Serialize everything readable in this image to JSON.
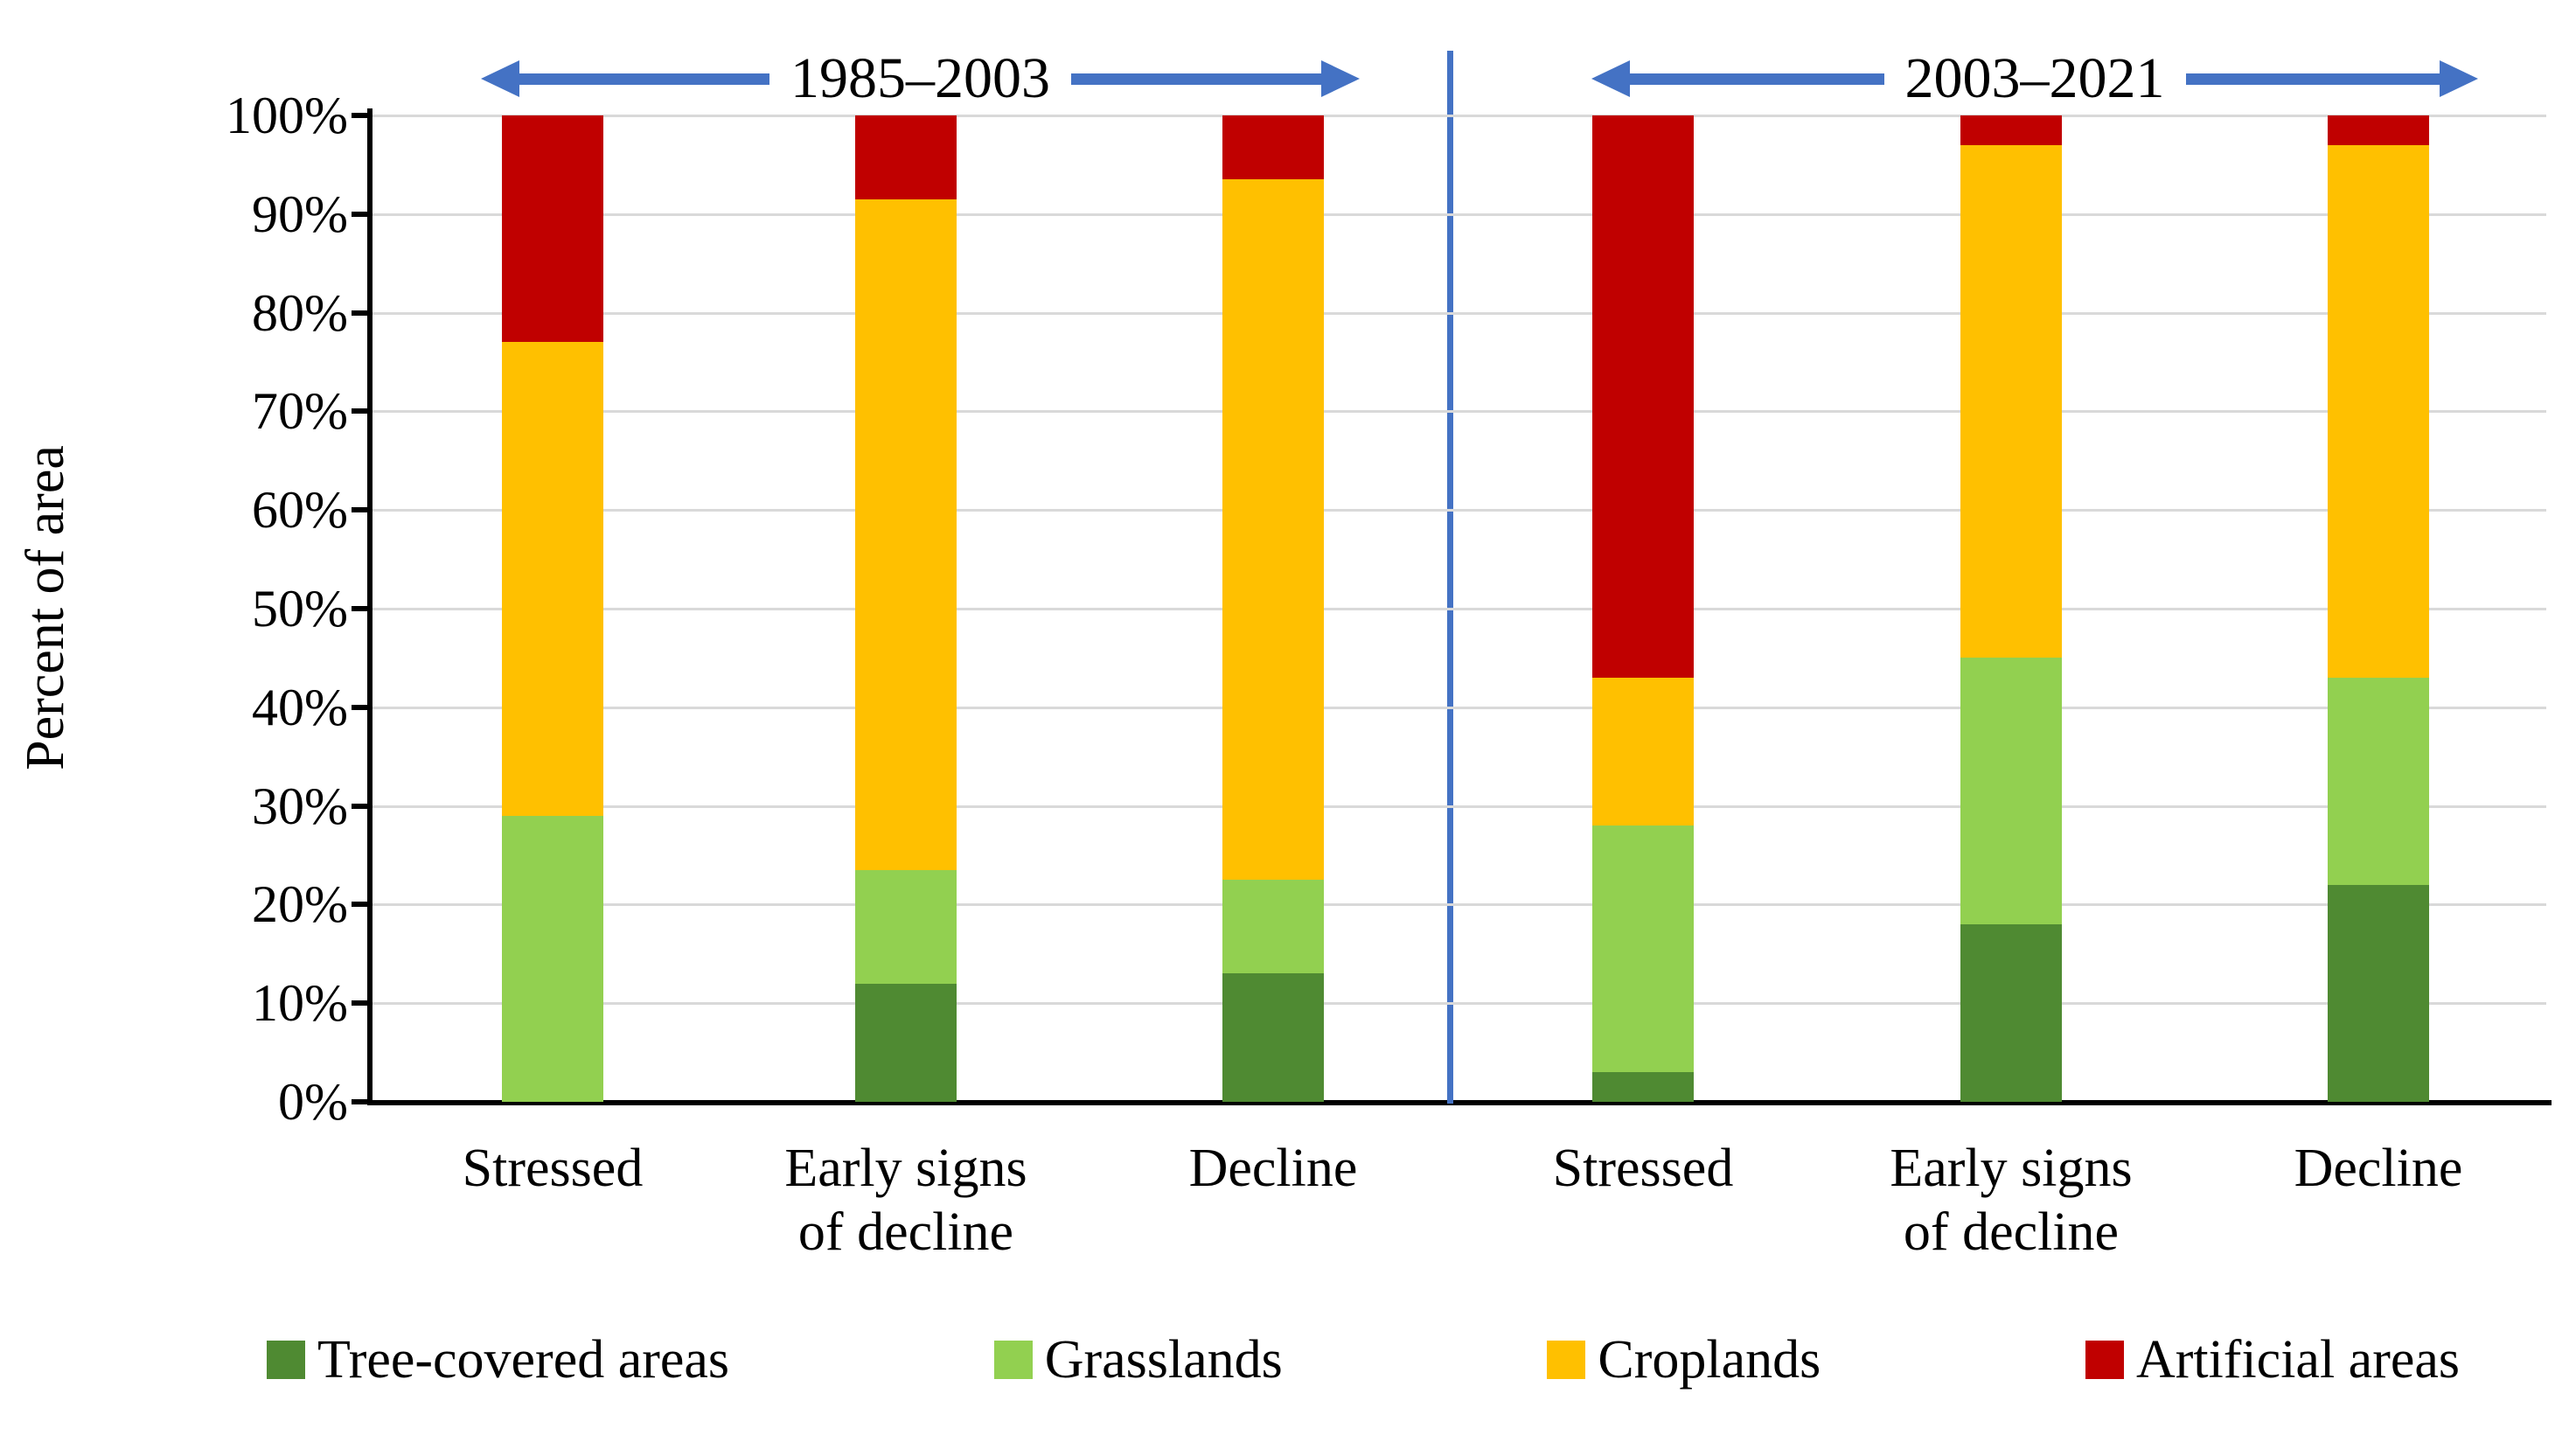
{
  "chart_data": {
    "type": "bar",
    "stacked": true,
    "percent_stack": true,
    "title": "",
    "ylabel": "Percent of area",
    "xlabel": "",
    "ylim": [
      0,
      100
    ],
    "ytick_step": 10,
    "ytick_suffix": "%",
    "grid": true,
    "legend_position": "bottom",
    "group_headers": [
      "1985–2003",
      "2003–2021"
    ],
    "group_divider": "vertical blue line between the two three-bar groups",
    "categories": [
      "Stressed",
      "Early signs\nof decline",
      "Decline",
      "Stressed",
      "Early signs\nof decline",
      "Decline"
    ],
    "series": [
      {
        "name": "Tree-covered areas",
        "color": "#4f8a32",
        "values": [
          0,
          12,
          13,
          3,
          18,
          22
        ]
      },
      {
        "name": "Grasslands",
        "color": "#92d050",
        "values": [
          29,
          11.5,
          9.5,
          25,
          27,
          21
        ]
      },
      {
        "name": "Croplands",
        "color": "#ffc000",
        "values": [
          48,
          68,
          71,
          15,
          52,
          54
        ]
      },
      {
        "name": "Artificial areas",
        "color": "#c00000",
        "values": [
          23,
          8.5,
          6.5,
          57,
          3,
          3
        ]
      }
    ],
    "accent_color": "#4472c4",
    "gridline_color": "#d9d9d9",
    "axis_color": "#000000"
  }
}
